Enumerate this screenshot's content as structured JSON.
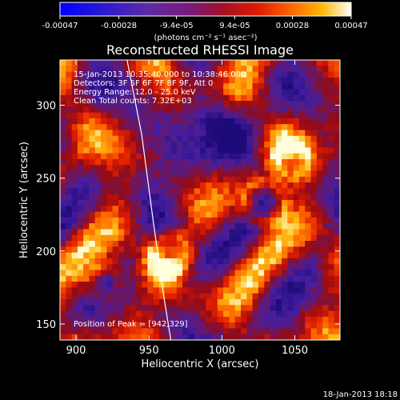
{
  "chart_data": {
    "type": "heatmap",
    "title": "Reconstructed RHESSI Image",
    "xlabel": "Heliocentric X (arcsec)",
    "ylabel": "Heliocentric Y (arcsec)",
    "xlim": [
      889,
      1081
    ],
    "ylim": [
      139,
      331
    ],
    "x_ticks": [
      900,
      950,
      1000,
      1050
    ],
    "y_ticks": [
      150,
      200,
      250,
      300
    ],
    "colorbar": {
      "range": [
        -0.00047,
        0.00047
      ],
      "tick_values": [
        -0.00047,
        -0.00028,
        -9.4e-05,
        9.4e-05,
        0.00028,
        0.00047
      ],
      "tick_labels": [
        "-0.00047",
        "-0.00028",
        "-9.4e-05",
        "9.4e-05",
        "0.00028",
        "0.00047"
      ],
      "unit_label": "(photons cm⁻² s⁻¹ asec⁻²)",
      "colormap": "blue-purple-red-orange-yellow-white"
    },
    "info_lines": [
      "15-Jan-2013 10:35:40.000 to 10:38:46.000",
      "Detectors: 3F 5F 6F 7F 8F 9F, Att 0",
      "Energy Range: 12.0 - 25.0 keV",
      "Clean     Total counts: 7.32E+03"
    ],
    "peak_label": "Position of Peak = [942,329]",
    "peak": [
      942,
      329
    ],
    "limb_curve": [
      [
        935,
        331
      ],
      [
        945,
        280
      ],
      [
        953,
        220
      ],
      [
        960,
        170
      ],
      [
        965,
        139
      ]
    ],
    "footer_date": "18-Jan-2013 18:18",
    "grid": false
  },
  "colors": {
    "background": "#000000",
    "text": "#ffffff",
    "limb": "#ffffff"
  }
}
